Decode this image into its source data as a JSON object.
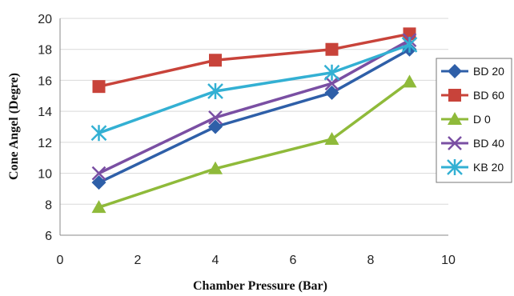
{
  "chart_data": {
    "type": "line",
    "title": "",
    "xlabel": "Chamber Pressure (Bar)",
    "ylabel": "Cone Angel (Degre)",
    "xlim": [
      0,
      10
    ],
    "ylim": [
      6,
      20
    ],
    "x_ticks": [
      "0",
      "2",
      "4",
      "6",
      "8",
      "10"
    ],
    "y_ticks": [
      "6",
      "8",
      "10",
      "12",
      "14",
      "16",
      "18",
      "20"
    ],
    "grid": "horizontal",
    "legend_position": "right",
    "x": [
      1,
      4,
      7,
      9
    ],
    "series": [
      {
        "name": "BD 20",
        "values": [
          9.4,
          13.0,
          15.2,
          18.0
        ],
        "color": "#2e5fa8",
        "marker": "diamond"
      },
      {
        "name": "BD 60",
        "values": [
          15.6,
          17.3,
          18.0,
          19.0
        ],
        "color": "#c8433a",
        "marker": "square"
      },
      {
        "name": "D 0",
        "values": [
          7.8,
          10.3,
          12.2,
          15.9
        ],
        "color": "#8fba3a",
        "marker": "triangle"
      },
      {
        "name": "BD 40",
        "values": [
          10.0,
          13.6,
          15.8,
          18.6
        ],
        "color": "#7a4fa3",
        "marker": "x"
      },
      {
        "name": "KB 20",
        "values": [
          12.6,
          15.3,
          16.5,
          18.3
        ],
        "color": "#33b0d3",
        "marker": "asterisk"
      }
    ]
  }
}
